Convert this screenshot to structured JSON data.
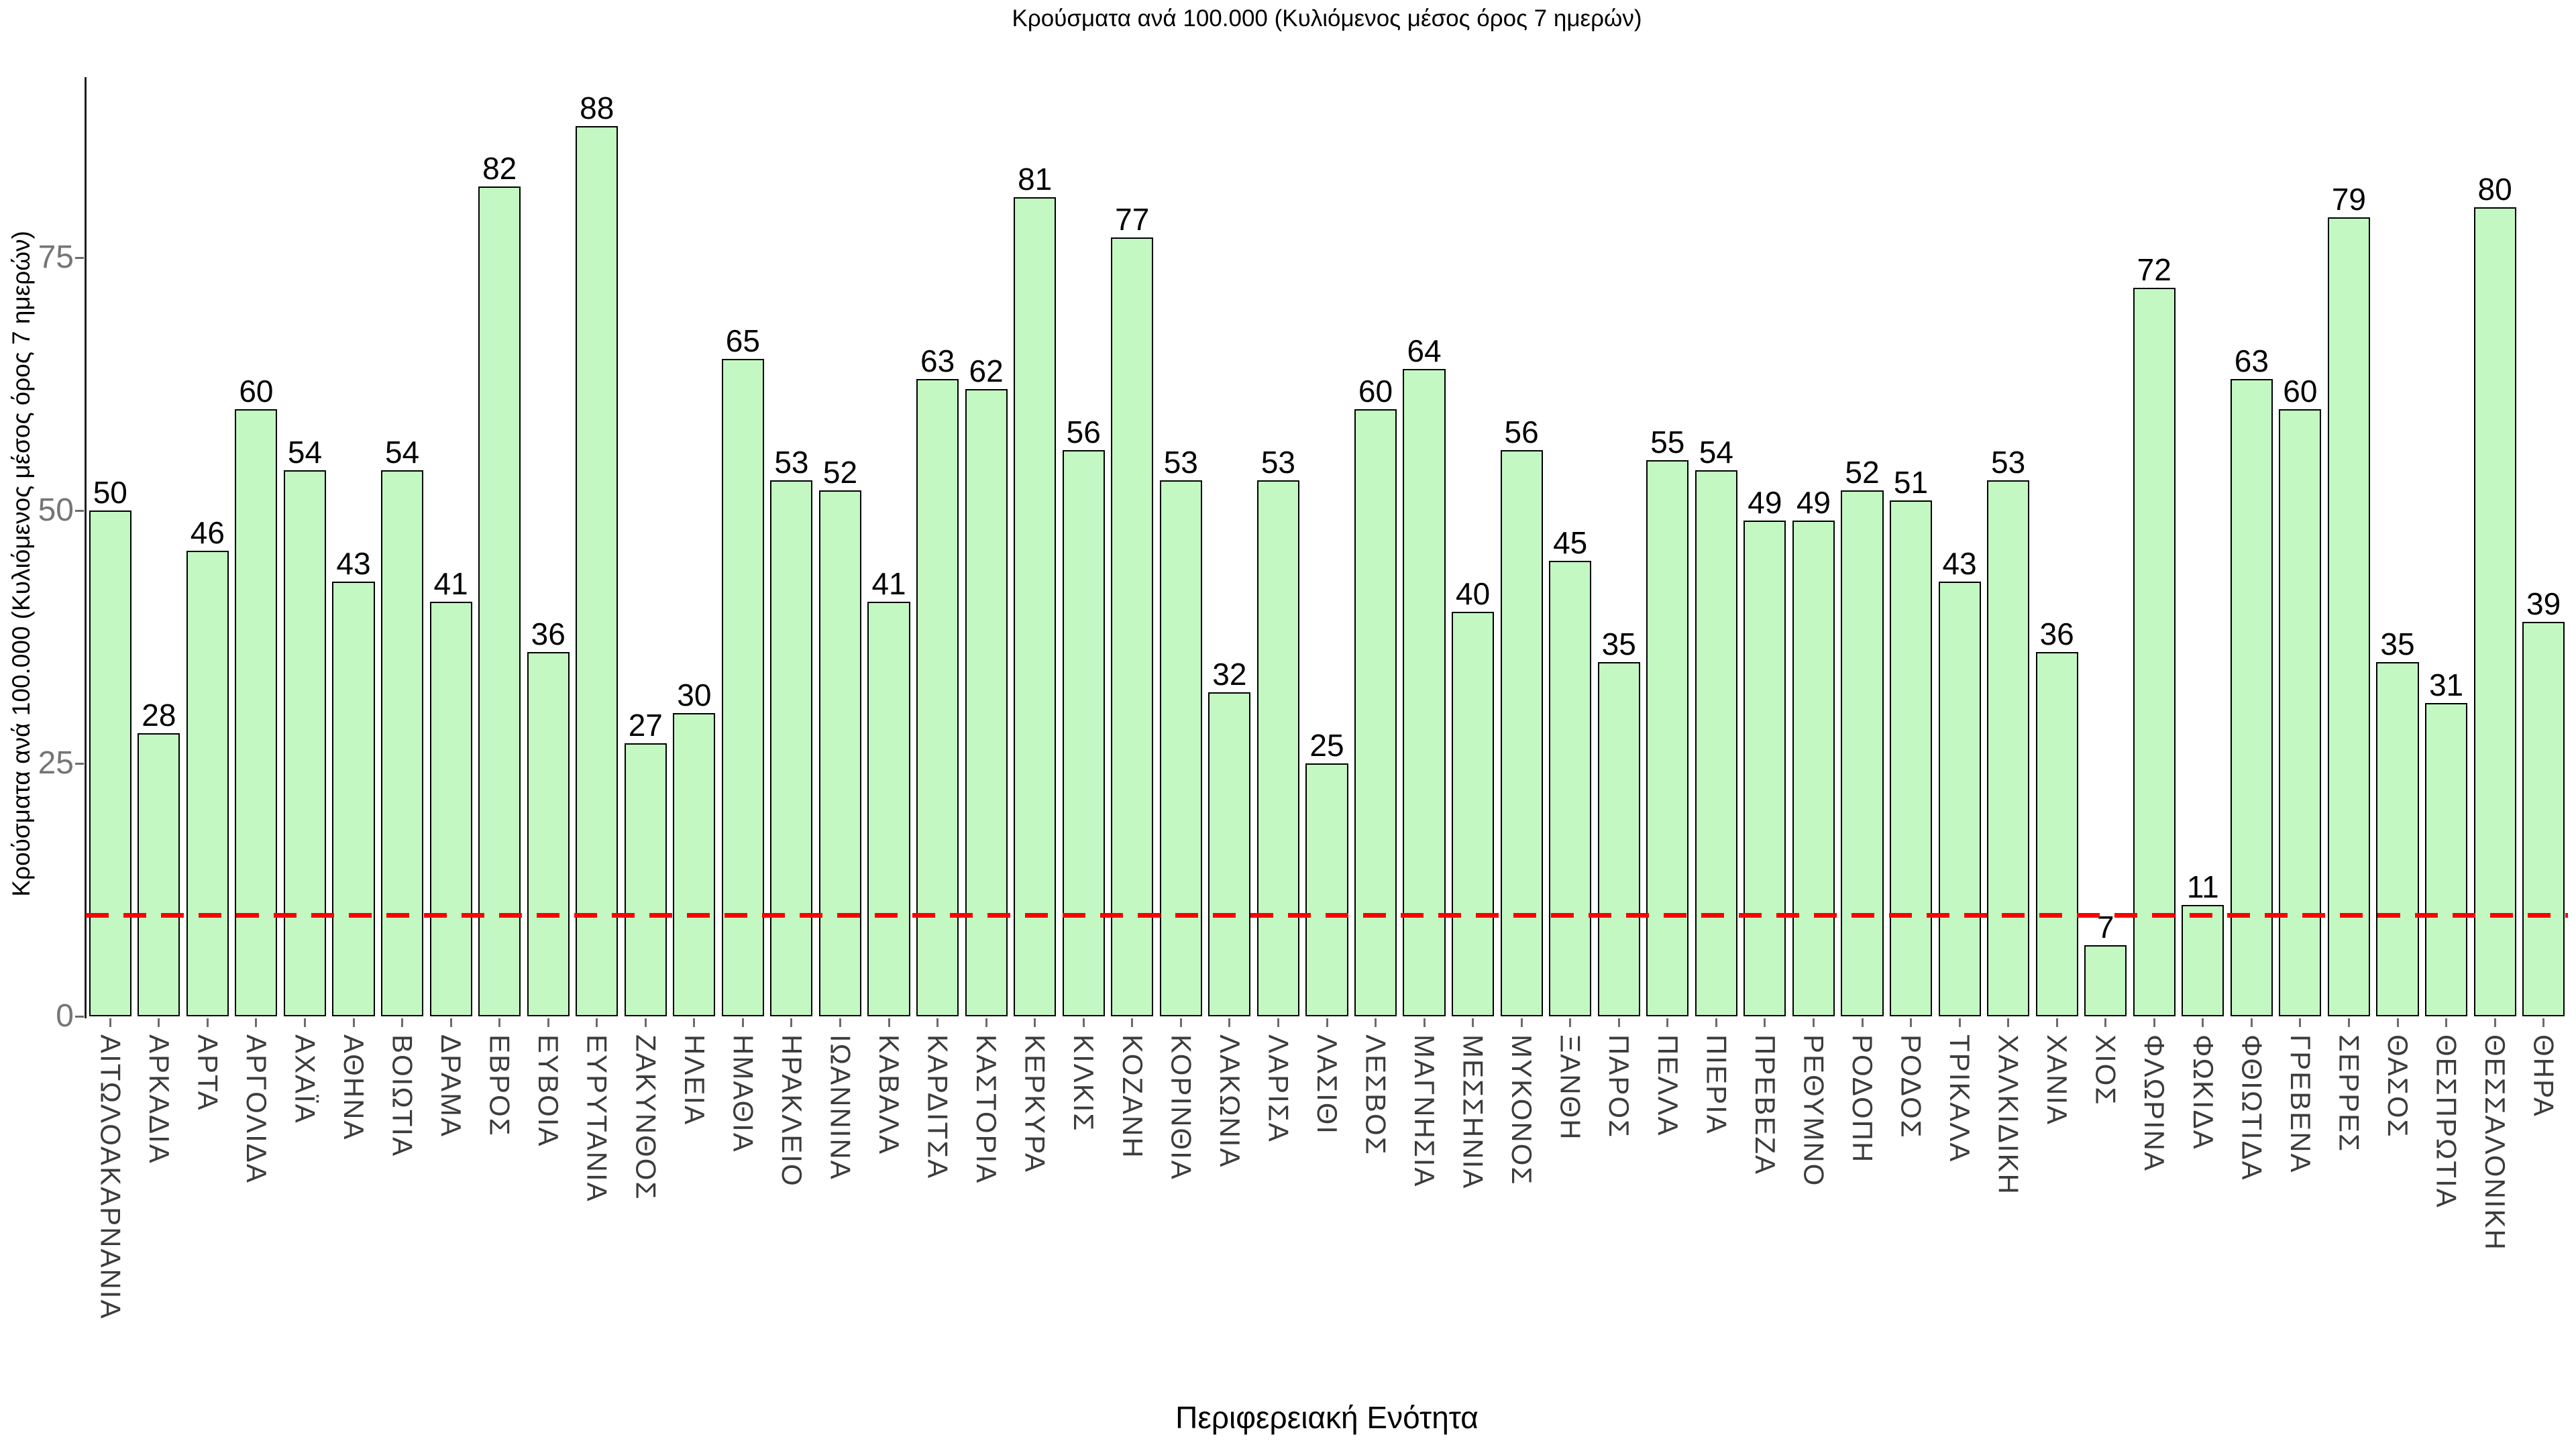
{
  "title": "Κρούσματα ανά 100.000 (Κυλιόμενος μέσος όρος 7 ημερών)",
  "chart_data": {
    "type": "bar",
    "title": "Κρούσματα ανά 100.000 (Κυλιόμενος μέσος όρος 7 ημερών)",
    "xlabel": "Περιφερειακή Ενότητα",
    "ylabel": "Κρούσματα ανά 100.000 (Κυλιόμενος μέσος όρος 7 ημερών)",
    "categories": [
      "ΑΙΤΩΛΟΑΚΑΡΝΑΝΙΑ",
      "ΑΡΚΑΔΙΑ",
      "ΑΡΤΑ",
      "ΑΡΓΟΛΙΔΑ",
      "ΑΧΑΪΑ",
      "ΑΘΗΝΑ",
      "ΒΟΙΩΤΙΑ",
      "ΔΡΑΜΑ",
      "ΕΒΡΟΣ",
      "ΕΥΒΟΙΑ",
      "ΕΥΡΥΤΑΝΙΑ",
      "ΖΑΚΥΝΘΟΣ",
      "ΗΛΕΙΑ",
      "ΗΜΑΘΙΑ",
      "ΗΡΑΚΛΕΙΟ",
      "ΙΩΑΝΝΙΝΑ",
      "ΚΑΒΑΛΑ",
      "ΚΑΡΔΙΤΣΑ",
      "ΚΑΣΤΟΡΙΑ",
      "ΚΕΡΚΥΡΑ",
      "ΚΙΛΚΙΣ",
      "ΚΟΖΑΝΗ",
      "ΚΟΡΙΝΘΙΑ",
      "ΛΑΚΩΝΙΑ",
      "ΛΑΡΙΣΑ",
      "ΛΑΣΙΘΙ",
      "ΛΕΣΒΟΣ",
      "ΜΑΓΝΗΣΙΑ",
      "ΜΕΣΣΗΝΙΑ",
      "ΜΥΚΟΝΟΣ",
      "ΞΑΝΘΗ",
      "ΠΑΡΟΣ",
      "ΠΕΛΛΑ",
      "ΠΙΕΡΙΑ",
      "ΠΡΕΒΕΖΑ",
      "ΡΕΘΥΜΝΟ",
      "ΡΟΔΟΠΗ",
      "ΡΟΔΟΣ",
      "ΤΡΙΚΑΛΑ",
      "ΧΑΛΚΙΔΙΚΗ",
      "ΧΑΝΙΑ",
      "ΧΙΟΣ",
      "ΦΛΩΡΙΝΑ",
      "ΦΩΚΙΔΑ",
      "ΦΘΙΩΤΙΔΑ",
      "ΓΡΕΒΕΝΑ",
      "ΣΕΡΡΕΣ",
      "ΘΑΣΟΣ",
      "ΘΕΣΠΡΩΤΙΑ",
      "ΘΕΣΣΑΛΟΝΙΚΗ",
      "ΘΗΡΑ"
    ],
    "values": [
      50,
      28,
      46,
      60,
      54,
      43,
      54,
      41,
      82,
      36,
      88,
      27,
      30,
      65,
      53,
      52,
      41,
      63,
      62,
      81,
      56,
      77,
      53,
      32,
      53,
      25,
      60,
      64,
      40,
      56,
      45,
      35,
      55,
      54,
      49,
      49,
      52,
      51,
      43,
      53,
      36,
      7,
      72,
      11,
      63,
      60,
      79,
      35,
      31,
      80,
      39
    ],
    "yticks": [
      0,
      25,
      50,
      75
    ],
    "ylim": [
      0,
      96
    ],
    "grid": false,
    "legend": false,
    "bar_fill": "#c3f8c2",
    "bar_border": "#000000",
    "tick_label_color": "#757575",
    "category_label_color": "#3c3c3c",
    "threshold_line": {
      "value": 10,
      "color": "#fb0000",
      "style": "dashed"
    }
  }
}
